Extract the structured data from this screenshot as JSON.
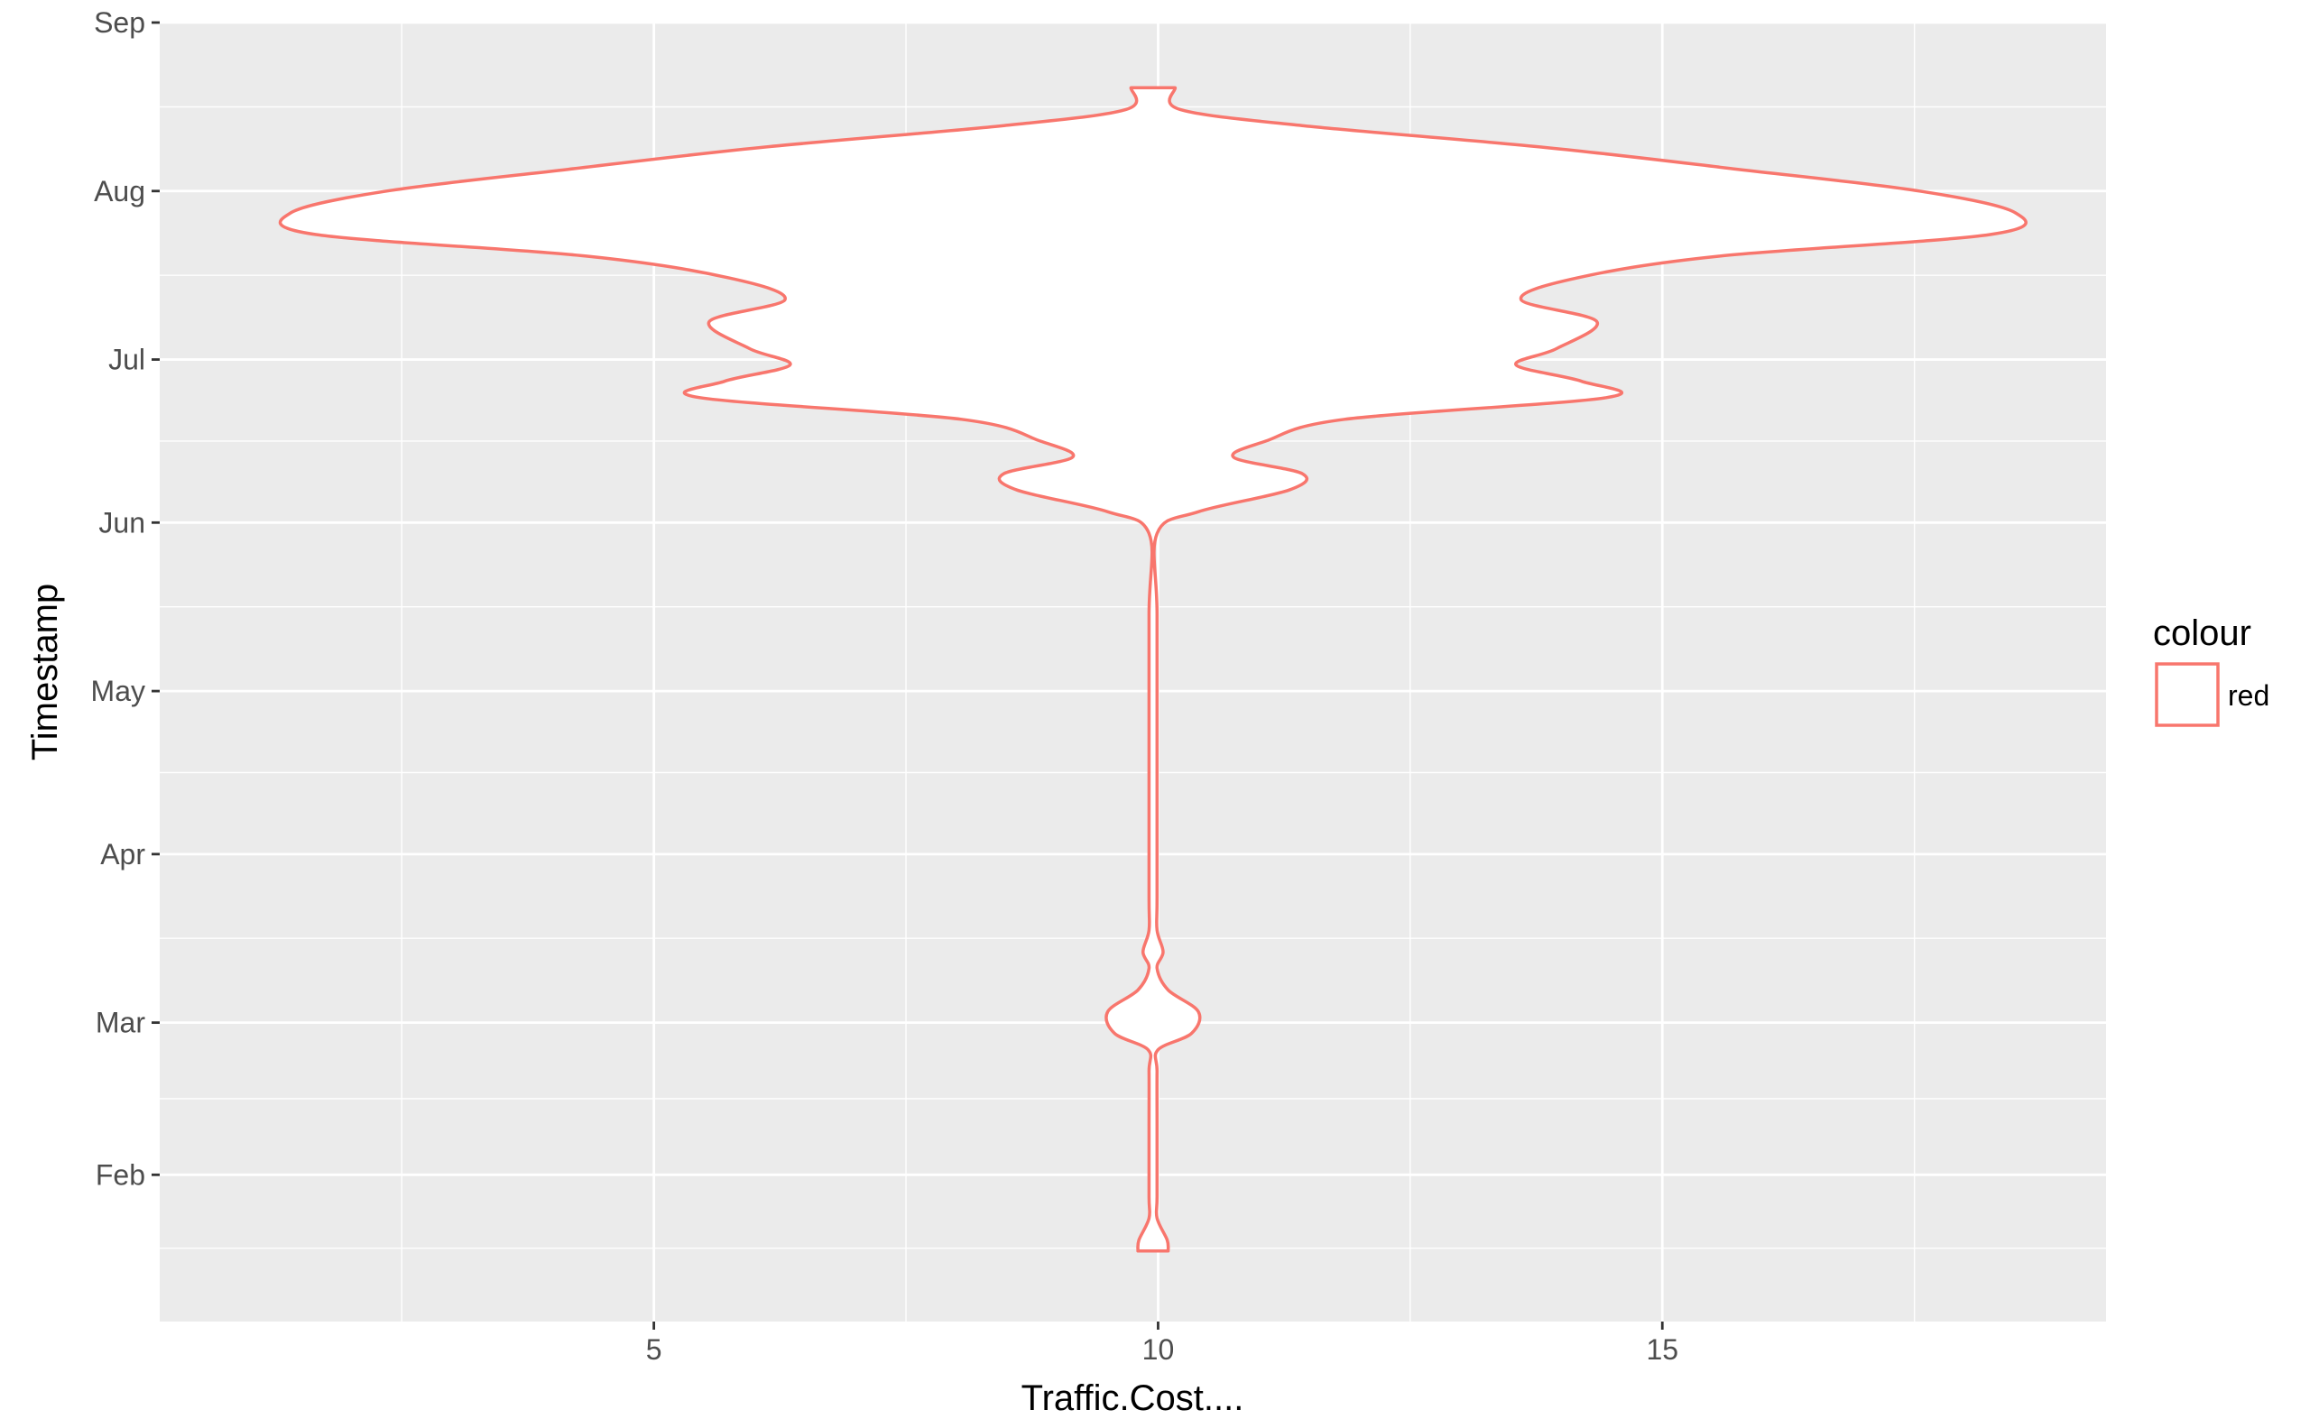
{
  "chart_data": {
    "type": "violin",
    "xlabel": "Traffic.Cost....",
    "ylabel": "Timestamp",
    "xlim": [
      0.1,
      19.4
    ],
    "x_ticks": [
      5,
      10,
      15
    ],
    "x_minor": [
      2.5,
      7.5,
      12.5,
      17.5
    ],
    "ylim": [
      "2017-01-05",
      "2017-09-01"
    ],
    "y_ticks": [
      {
        "date": "2017-02-01",
        "label": "Feb"
      },
      {
        "date": "2017-03-01",
        "label": "Mar"
      },
      {
        "date": "2017-04-01",
        "label": "Apr"
      },
      {
        "date": "2017-05-01",
        "label": "May"
      },
      {
        "date": "2017-06-01",
        "label": "Jun"
      },
      {
        "date": "2017-07-01",
        "label": "Jul"
      },
      {
        "date": "2017-08-01",
        "label": "Aug"
      },
      {
        "date": "2017-09-01",
        "label": "Sep"
      }
    ],
    "center_x": 9.95,
    "violin_profile": [
      {
        "date": "2017-01-18",
        "half_width": 0.15
      },
      {
        "date": "2017-01-20",
        "half_width": 0.14
      },
      {
        "date": "2017-01-24",
        "half_width": 0.03
      },
      {
        "date": "2017-01-28",
        "half_width": 0.0
      },
      {
        "date": "2017-02-10",
        "half_width": 0.0
      },
      {
        "date": "2017-02-20",
        "half_width": 0.0
      },
      {
        "date": "2017-02-24",
        "half_width": 0.05
      },
      {
        "date": "2017-02-27",
        "half_width": 0.38
      },
      {
        "date": "2017-03-03",
        "half_width": 0.45
      },
      {
        "date": "2017-03-07",
        "half_width": 0.15
      },
      {
        "date": "2017-03-11",
        "half_width": 0.03
      },
      {
        "date": "2017-03-14",
        "half_width": 0.1
      },
      {
        "date": "2017-03-18",
        "half_width": 0.03
      },
      {
        "date": "2017-03-24",
        "half_width": 0.0
      },
      {
        "date": "2017-04-15",
        "half_width": 0.0
      },
      {
        "date": "2017-05-15",
        "half_width": 0.0
      },
      {
        "date": "2017-05-30",
        "half_width": 0.02
      },
      {
        "date": "2017-06-03",
        "half_width": 0.45
      },
      {
        "date": "2017-06-07",
        "half_width": 1.35
      },
      {
        "date": "2017-06-10",
        "half_width": 1.48
      },
      {
        "date": "2017-06-13",
        "half_width": 0.8
      },
      {
        "date": "2017-06-16",
        "half_width": 1.12
      },
      {
        "date": "2017-06-20",
        "half_width": 1.9
      },
      {
        "date": "2017-06-24",
        "half_width": 4.5
      },
      {
        "date": "2017-06-27",
        "half_width": 4.25
      },
      {
        "date": "2017-06-30",
        "half_width": 3.6
      },
      {
        "date": "2017-07-03",
        "half_width": 4.0
      },
      {
        "date": "2017-07-08",
        "half_width": 4.4
      },
      {
        "date": "2017-07-12",
        "half_width": 3.65
      },
      {
        "date": "2017-07-16",
        "half_width": 4.2
      },
      {
        "date": "2017-07-20",
        "half_width": 5.6
      },
      {
        "date": "2017-07-24",
        "half_width": 8.3
      },
      {
        "date": "2017-07-28",
        "half_width": 8.55
      },
      {
        "date": "2017-08-01",
        "half_width": 7.6
      },
      {
        "date": "2017-08-05",
        "half_width": 5.8
      },
      {
        "date": "2017-08-09",
        "half_width": 3.9
      },
      {
        "date": "2017-08-13",
        "half_width": 1.5
      },
      {
        "date": "2017-08-16",
        "half_width": 0.27
      },
      {
        "date": "2017-08-20",
        "half_width": 0.22
      }
    ],
    "legend": {
      "title": "colour",
      "labels": [
        "red"
      ],
      "position": "right"
    },
    "grid": true,
    "colors": {
      "outline": "#F8766D",
      "fill": "#FFFFFF",
      "panel": "#EBEBEB",
      "grid": "#FFFFFF"
    }
  }
}
